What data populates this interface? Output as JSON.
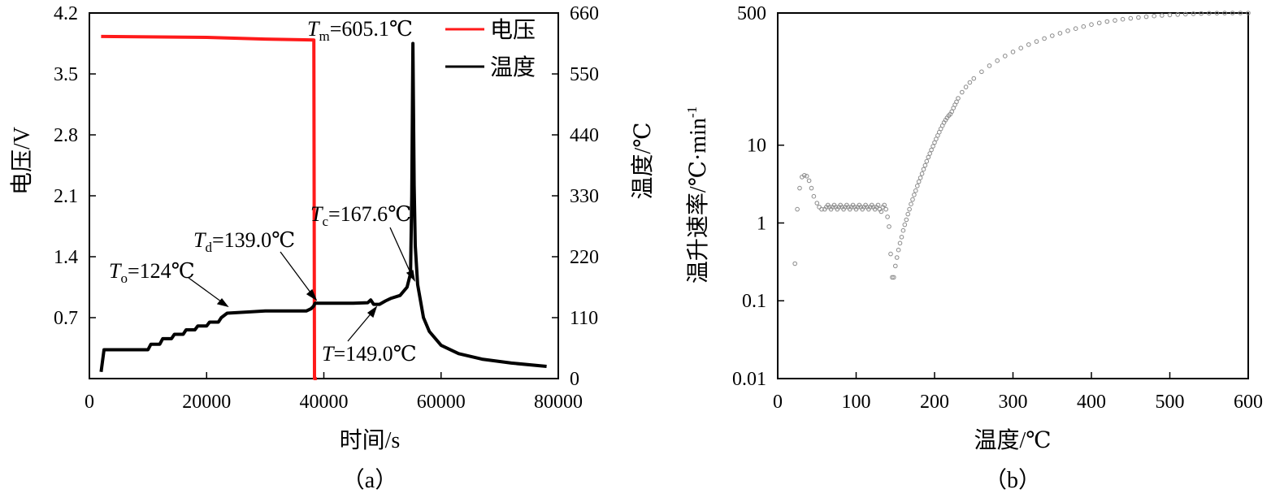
{
  "chart_data": [
    {
      "type": "line",
      "panel_label": "（a）",
      "xlabel": "时间/s",
      "ylabel_left": "电压/V",
      "ylabel_right": "温度/℃",
      "xlim": [
        0,
        80000
      ],
      "ylim_left": [
        0,
        4.2
      ],
      "ylim_right": [
        0,
        660
      ],
      "xticks": [
        "0",
        "20000",
        "40000",
        "60000",
        "80000"
      ],
      "yticks_left": [
        "0.7",
        "1.4",
        "2.1",
        "2.8",
        "3.5",
        "4.2"
      ],
      "yticks_right": [
        "0",
        "110",
        "220",
        "330",
        "440",
        "550",
        "660"
      ],
      "legend": [
        {
          "name": "电压",
          "color": "#ff1a1a"
        },
        {
          "name": "温度",
          "color": "#000000"
        }
      ],
      "series": [
        {
          "name": "电压",
          "axis": "left",
          "color": "#ff1a1a",
          "x": [
            2000,
            20000,
            30000,
            38300,
            38400,
            38800
          ],
          "y": [
            3.93,
            3.92,
            3.9,
            3.89,
            0.0,
            0.0
          ]
        },
        {
          "name": "温度",
          "axis": "right",
          "color": "#000000",
          "x": [
            2000,
            2500,
            3000,
            10000,
            10500,
            12000,
            12500,
            14000,
            14500,
            16000,
            16500,
            18000,
            18500,
            20000,
            20500,
            22000,
            22500,
            23500,
            30000,
            37000,
            37800,
            38200,
            38500,
            40000,
            45000,
            47500,
            48000,
            48500,
            49500,
            50500,
            51500,
            53000,
            54200,
            54800,
            55000,
            55200,
            55400,
            55600,
            56000,
            57000,
            58000,
            60000,
            63000,
            67000,
            72000,
            78000
          ],
          "y": [
            12,
            52,
            52,
            52,
            62,
            62,
            72,
            72,
            80,
            80,
            88,
            88,
            95,
            95,
            102,
            102,
            110,
            118,
            122,
            122,
            126,
            130,
            136,
            136,
            136,
            137,
            142,
            134,
            134,
            140,
            145,
            150,
            165,
            190,
            330,
            605,
            350,
            240,
            170,
            110,
            85,
            60,
            45,
            35,
            28,
            22
          ]
        }
      ],
      "annotations": [
        {
          "sym": "T",
          "sub": "m",
          "text": "=605.1℃"
        },
        {
          "sym": "T",
          "sub": "c",
          "text": "=167.6℃"
        },
        {
          "sym": "T",
          "sub": "d",
          "text": "=139.0℃"
        },
        {
          "sym": "T",
          "sub": "o",
          "text": "=124℃"
        },
        {
          "sym": "T",
          "sub": "",
          "text": "=149.0℃"
        }
      ]
    },
    {
      "type": "scatter",
      "panel_label": "（b）",
      "xlabel": "温度/℃",
      "ylabel": "温升速率/℃·min",
      "ylabel_sup": "-1",
      "xlim": [
        0,
        600
      ],
      "ylim": [
        0.01,
        500
      ],
      "yscale": "log",
      "xticks": [
        "0",
        "100",
        "200",
        "300",
        "400",
        "500",
        "600"
      ],
      "yticks": [
        "0.01",
        "0.1",
        "1",
        "10",
        "500"
      ],
      "ytick_values": [
        0.01,
        0.1,
        1,
        10,
        500
      ],
      "marker_color": "#8a8a8a",
      "x": [
        22,
        25,
        28,
        31,
        34,
        37,
        40,
        43,
        46,
        50,
        53,
        56,
        60,
        62,
        64,
        66,
        68,
        70,
        72,
        74,
        76,
        78,
        80,
        82,
        84,
        86,
        88,
        90,
        92,
        94,
        96,
        98,
        100,
        102,
        104,
        106,
        108,
        110,
        112,
        114,
        116,
        118,
        120,
        122,
        124,
        126,
        128,
        130,
        132,
        134,
        136,
        138,
        140,
        142,
        144,
        146,
        148,
        150,
        152,
        154,
        156,
        158,
        160,
        162,
        164,
        166,
        168,
        170,
        172,
        174,
        176,
        178,
        180,
        182,
        184,
        186,
        188,
        190,
        192,
        194,
        196,
        198,
        200,
        202,
        204,
        206,
        208,
        210,
        212,
        214,
        216,
        218,
        220,
        222,
        224,
        226,
        228,
        230,
        235,
        240,
        245,
        250,
        260,
        270,
        280,
        290,
        300,
        310,
        320,
        330,
        340,
        350,
        360,
        370,
        380,
        390,
        400,
        410,
        420,
        430,
        440,
        450,
        460,
        470,
        480,
        490,
        500,
        510,
        520,
        530,
        540,
        550,
        560,
        570,
        580,
        590,
        600
      ],
      "y": [
        0.3,
        1.5,
        2.8,
        3.9,
        4.1,
        4.0,
        3.5,
        2.8,
        2.2,
        1.8,
        1.6,
        1.5,
        1.5,
        1.6,
        1.7,
        1.6,
        1.5,
        1.6,
        1.7,
        1.6,
        1.5,
        1.6,
        1.7,
        1.6,
        1.5,
        1.6,
        1.7,
        1.6,
        1.5,
        1.6,
        1.7,
        1.6,
        1.5,
        1.6,
        1.7,
        1.6,
        1.5,
        1.6,
        1.7,
        1.6,
        1.5,
        1.6,
        1.7,
        1.6,
        1.5,
        1.6,
        1.7,
        1.5,
        1.4,
        1.6,
        1.7,
        1.5,
        1.2,
        0.9,
        0.4,
        0.2,
        0.2,
        0.28,
        0.36,
        0.45,
        0.55,
        0.66,
        0.8,
        0.95,
        1.1,
        1.3,
        1.5,
        1.75,
        2.0,
        2.3,
        2.6,
        3.0,
        3.4,
        3.8,
        4.3,
        4.9,
        5.5,
        6.2,
        7.0,
        7.8,
        8.7,
        9.7,
        10.8,
        12.0,
        13.3,
        14.7,
        16.2,
        17.8,
        19.5,
        21.0,
        22.5,
        24.0,
        25.0,
        27.0,
        30.0,
        33.0,
        36.0,
        40.0,
        48.0,
        56.0,
        64.0,
        72.0,
        88.0,
        105.0,
        122.0,
        140.0,
        158.0,
        177.0,
        196.0,
        215.0,
        235.0,
        255.0,
        275.0,
        295.0,
        315.0,
        335.0,
        355.0,
        372.0,
        388.0,
        402.0,
        415.0,
        427.0,
        438.0,
        448.0,
        457.0,
        465.0,
        472.0,
        478.0,
        484.0,
        489.0,
        493.0,
        496.0,
        498.0,
        499.0,
        500.0,
        500.0,
        500.0
      ]
    }
  ]
}
